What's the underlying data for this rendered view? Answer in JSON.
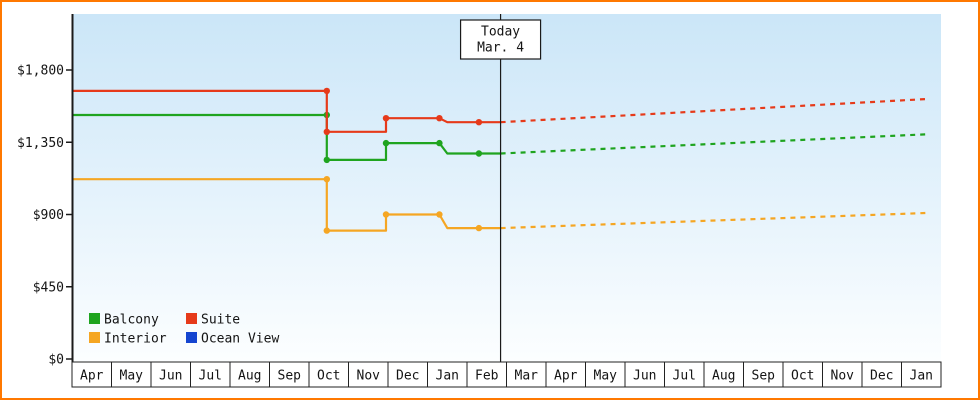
{
  "chart_data": {
    "type": "line",
    "x_unit": "month index from first Apr (fractional = position within month)",
    "x_axis": {
      "months": [
        "Apr",
        "May",
        "Jun",
        "Jul",
        "Aug",
        "Sep",
        "Oct",
        "Nov",
        "Dec",
        "Jan",
        "Feb",
        "Mar",
        "Apr",
        "May",
        "Jun",
        "Jul",
        "Aug",
        "Sep",
        "Oct",
        "Nov",
        "Dec",
        "Jan"
      ]
    },
    "y_axis": {
      "ticks": [
        {
          "value": 1800,
          "label": "$1,800"
        },
        {
          "value": 1350,
          "label": "$1,350"
        },
        {
          "value": 900,
          "label": "$900"
        },
        {
          "value": 450,
          "label": "$450"
        },
        {
          "value": 0,
          "label": "$0"
        }
      ],
      "range": [
        0,
        2000
      ]
    },
    "today": {
      "label": "Today",
      "date": "Mar. 4",
      "month_position": 10.85
    },
    "series": [
      {
        "name": "Balcony",
        "color": "#1fa41f",
        "history": [
          [
            0,
            1520
          ],
          [
            6.45,
            1520
          ],
          [
            6.45,
            1240
          ],
          [
            7.95,
            1240
          ],
          [
            7.95,
            1345
          ],
          [
            9.3,
            1345
          ],
          [
            9.5,
            1280
          ],
          [
            10.85,
            1280
          ]
        ],
        "markers": [
          [
            6.45,
            1520
          ],
          [
            6.45,
            1240
          ],
          [
            7.95,
            1345
          ],
          [
            9.3,
            1345
          ],
          [
            10.3,
            1280
          ]
        ],
        "forecast": [
          [
            10.85,
            1280
          ],
          [
            21.7,
            1400
          ]
        ]
      },
      {
        "name": "Suite",
        "color": "#e63a1a",
        "history": [
          [
            0,
            1670
          ],
          [
            6.45,
            1670
          ],
          [
            6.45,
            1415
          ],
          [
            7.95,
            1415
          ],
          [
            7.95,
            1500
          ],
          [
            9.3,
            1500
          ],
          [
            9.5,
            1475
          ],
          [
            10.85,
            1475
          ]
        ],
        "markers": [
          [
            6.45,
            1670
          ],
          [
            6.45,
            1415
          ],
          [
            7.95,
            1500
          ],
          [
            9.3,
            1500
          ],
          [
            10.3,
            1475
          ]
        ],
        "forecast": [
          [
            10.85,
            1475
          ],
          [
            21.7,
            1620
          ]
        ]
      },
      {
        "name": "Interior",
        "color": "#f5a623",
        "history": [
          [
            0,
            1120
          ],
          [
            6.45,
            1120
          ],
          [
            6.45,
            800
          ],
          [
            7.95,
            800
          ],
          [
            7.95,
            900
          ],
          [
            9.3,
            900
          ],
          [
            9.5,
            815
          ],
          [
            10.85,
            815
          ]
        ],
        "markers": [
          [
            6.45,
            1120
          ],
          [
            6.45,
            800
          ],
          [
            7.95,
            900
          ],
          [
            9.3,
            900
          ],
          [
            10.3,
            815
          ]
        ],
        "forecast": [
          [
            10.85,
            815
          ],
          [
            21.7,
            910
          ]
        ]
      },
      {
        "name": "Ocean View",
        "color": "#1545d0",
        "history": [],
        "markers": [],
        "forecast": []
      }
    ],
    "legend": [
      {
        "label": "Balcony",
        "color": "#1fa41f"
      },
      {
        "label": "Suite",
        "color": "#e63a1a"
      },
      {
        "label": "Interior",
        "color": "#f5a623"
      },
      {
        "label": "Ocean View",
        "color": "#1545d0"
      }
    ],
    "layout_hints": {
      "grid": false,
      "legend_position": "bottom-left inside plot",
      "forecast_style": "dotted",
      "plot_background": [
        "#cbe6f8",
        "#fcfeff"
      ],
      "frame_color": "#ff7800"
    }
  }
}
